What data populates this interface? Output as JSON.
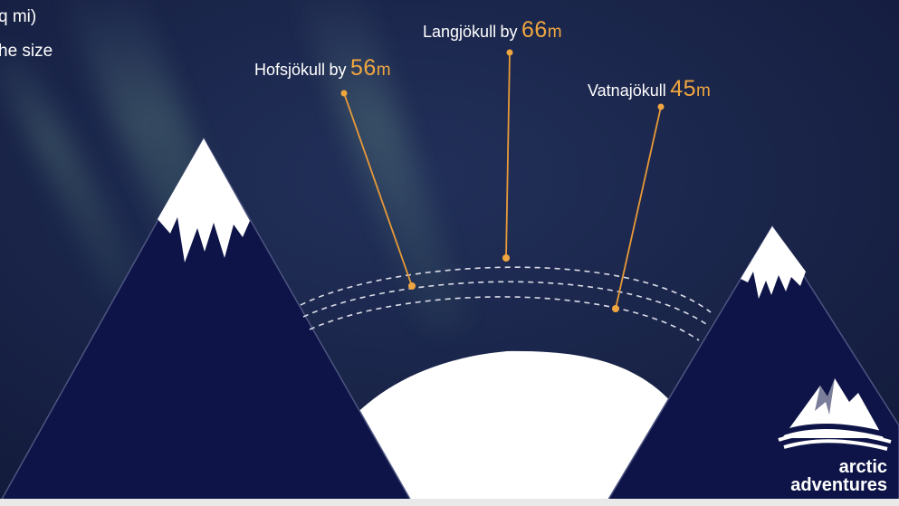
{
  "side_text": {
    "line1": "q mi)",
    "line2": "he size"
  },
  "glaciers": [
    {
      "name": "Hofsjökull",
      "by": "by",
      "value": "56",
      "unit": "m"
    },
    {
      "name": "Langjökull",
      "by": "by",
      "value": "66",
      "unit": "m"
    },
    {
      "name": "Vatnajökull",
      "by": "",
      "value": "45",
      "unit": "m"
    }
  ],
  "logo": {
    "line1": "arctic",
    "line2": "adventures"
  },
  "colors": {
    "sky": "#141b3b",
    "mountain": "#0e1447",
    "snow": "#ffffff",
    "accent": "#f0a640",
    "aurora": "#5d8a7a"
  }
}
